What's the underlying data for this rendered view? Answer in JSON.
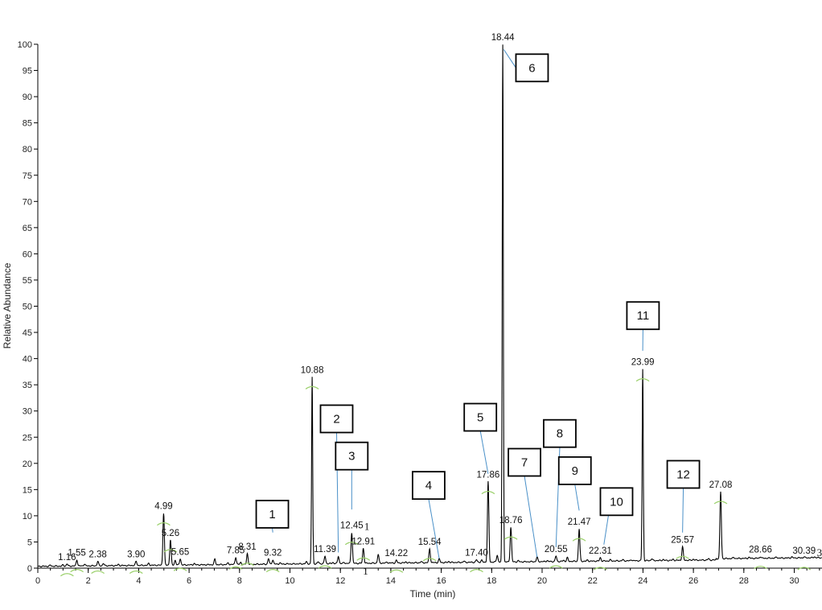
{
  "chart_data": {
    "type": "line",
    "title": "",
    "xlabel": "Time (min)",
    "ylabel": "Relative Abundance",
    "xlim": [
      0,
      31.1
    ],
    "ylim": [
      0,
      100
    ],
    "x_ticks": [
      0,
      2,
      4,
      6,
      8,
      10,
      12,
      14,
      16,
      18,
      20,
      22,
      24,
      26,
      28,
      30
    ],
    "y_ticks": [
      0,
      5,
      10,
      15,
      20,
      25,
      30,
      35,
      40,
      45,
      50,
      55,
      60,
      65,
      70,
      75,
      80,
      85,
      90,
      95,
      100
    ],
    "peaks": [
      {
        "x": 1.16,
        "y": 0.8,
        "label": "1.16"
      },
      {
        "x": 1.55,
        "y": 1.6,
        "label": "1.55"
      },
      {
        "x": 2.38,
        "y": 1.3,
        "label": "2.38"
      },
      {
        "x": 3.9,
        "y": 1.3,
        "label": "3.90"
      },
      {
        "x": 4.99,
        "y": 10.5,
        "label": "4.99"
      },
      {
        "x": 5.26,
        "y": 5.4,
        "label": "5.26"
      },
      {
        "x": 5.65,
        "y": 1.8,
        "label": "5.65"
      },
      {
        "x": 7.85,
        "y": 2.1,
        "label": "7.85"
      },
      {
        "x": 8.31,
        "y": 2.8,
        "label": "8.31"
      },
      {
        "x": 9.32,
        "y": 1.6,
        "label": "9.32"
      },
      {
        "x": 10.88,
        "y": 36.5,
        "label": "10.88"
      },
      {
        "x": 11.39,
        "y": 2.3,
        "label": "11.39"
      },
      {
        "x": 12.45,
        "y": 6.8,
        "label": "12.45"
      },
      {
        "x": 12.91,
        "y": 3.8,
        "label": "12.91"
      },
      {
        "x": 14.22,
        "y": 1.5,
        "label": "14.22"
      },
      {
        "x": 15.54,
        "y": 3.7,
        "label": "15.54"
      },
      {
        "x": 17.4,
        "y": 1.6,
        "label": "17.40"
      },
      {
        "x": 17.86,
        "y": 16.5,
        "label": "17.86"
      },
      {
        "x": 18.44,
        "y": 100,
        "label": "18.44"
      },
      {
        "x": 18.76,
        "y": 7.8,
        "label": "18.76"
      },
      {
        "x": 20.55,
        "y": 2.3,
        "label": "20.55"
      },
      {
        "x": 21.47,
        "y": 7.5,
        "label": "21.47"
      },
      {
        "x": 22.31,
        "y": 2.0,
        "label": "22.31"
      },
      {
        "x": 23.99,
        "y": 38.0,
        "label": "23.99"
      },
      {
        "x": 25.57,
        "y": 4.1,
        "label": "25.57"
      },
      {
        "x": 27.08,
        "y": 14.6,
        "label": "27.08"
      },
      {
        "x": 28.66,
        "y": 2.2,
        "label": "28.66"
      },
      {
        "x": 30.39,
        "y": 2.0,
        "label": "30.39"
      }
    ],
    "minor_peaks": [
      {
        "x": 0.5,
        "y": 0.4
      },
      {
        "x": 1.0,
        "y": 0.6
      },
      {
        "x": 1.85,
        "y": 0.8
      },
      {
        "x": 2.6,
        "y": 0.9
      },
      {
        "x": 3.2,
        "y": 0.7
      },
      {
        "x": 4.4,
        "y": 0.9
      },
      {
        "x": 5.45,
        "y": 1.5
      },
      {
        "x": 6.2,
        "y": 0.9
      },
      {
        "x": 7.02,
        "y": 1.7
      },
      {
        "x": 7.55,
        "y": 1.0
      },
      {
        "x": 8.05,
        "y": 1.1
      },
      {
        "x": 9.15,
        "y": 1.8
      },
      {
        "x": 9.6,
        "y": 1.0
      },
      {
        "x": 10.65,
        "y": 1.2
      },
      {
        "x": 11.12,
        "y": 1.2
      },
      {
        "x": 11.7,
        "y": 1.1
      },
      {
        "x": 11.92,
        "y": 2.3
      },
      {
        "x": 12.15,
        "y": 1.1
      },
      {
        "x": 13.5,
        "y": 2.6
      },
      {
        "x": 13.85,
        "y": 1.1
      },
      {
        "x": 14.6,
        "y": 1.2
      },
      {
        "x": 15.2,
        "y": 1.1
      },
      {
        "x": 15.92,
        "y": 1.8
      },
      {
        "x": 16.3,
        "y": 1.0
      },
      {
        "x": 16.9,
        "y": 1.2
      },
      {
        "x": 17.6,
        "y": 1.5
      },
      {
        "x": 18.22,
        "y": 2.5
      },
      {
        "x": 19.05,
        "y": 1.3
      },
      {
        "x": 19.8,
        "y": 2.1
      },
      {
        "x": 20.2,
        "y": 1.4
      },
      {
        "x": 20.85,
        "y": 1.5
      },
      {
        "x": 21.0,
        "y": 2.0
      },
      {
        "x": 21.8,
        "y": 1.3
      },
      {
        "x": 22.7,
        "y": 1.3
      },
      {
        "x": 23.2,
        "y": 1.5
      },
      {
        "x": 23.55,
        "y": 1.5
      },
      {
        "x": 24.35,
        "y": 1.8
      },
      {
        "x": 24.8,
        "y": 1.4
      },
      {
        "x": 25.2,
        "y": 1.4
      },
      {
        "x": 26.0,
        "y": 1.5
      },
      {
        "x": 26.6,
        "y": 1.8
      },
      {
        "x": 27.6,
        "y": 2.0
      },
      {
        "x": 28.2,
        "y": 1.8
      },
      {
        "x": 29.3,
        "y": 1.7
      },
      {
        "x": 29.9,
        "y": 1.8
      },
      {
        "x": 30.8,
        "y": 1.9
      }
    ],
    "callouts": [
      {
        "label": "1",
        "box_x": 9.3,
        "box_y": 10.3,
        "target_x": 9.32,
        "target_y": 6.8
      },
      {
        "label": "2",
        "box_x": 11.85,
        "box_y": 28.5,
        "target_x": 11.92,
        "target_y": 3.0
      },
      {
        "label": "3",
        "box_x": 12.45,
        "box_y": 21.4,
        "target_x": 12.45,
        "target_y": 11.2
      },
      {
        "label": "4",
        "box_x": 15.5,
        "box_y": 15.8,
        "target_x": 15.92,
        "target_y": 1.8
      },
      {
        "label": "5",
        "box_x": 17.55,
        "box_y": 28.8,
        "target_x": 17.86,
        "target_y": 18.0
      },
      {
        "label": "6",
        "box_x": 19.6,
        "box_y": 95.5,
        "target_x": 18.48,
        "target_y": 99.0
      },
      {
        "label": "7",
        "box_x": 19.3,
        "box_y": 20.2,
        "target_x": 19.8,
        "target_y": 2.1
      },
      {
        "label": "8",
        "box_x": 20.7,
        "box_y": 25.7,
        "target_x": 20.55,
        "target_y": 4.0
      },
      {
        "label": "9",
        "box_x": 21.3,
        "box_y": 18.6,
        "target_x": 21.47,
        "target_y": 11.0
      },
      {
        "label": "10",
        "box_x": 22.95,
        "box_y": 12.7,
        "target_x": 22.45,
        "target_y": 4.5
      },
      {
        "label": "11",
        "box_x": 24.0,
        "box_y": 48.2,
        "target_x": 23.99,
        "target_y": 41.5
      },
      {
        "label": "12",
        "box_x": 25.6,
        "box_y": 17.9,
        "target_x": 25.57,
        "target_y": 6.8
      }
    ],
    "stray_marks": [
      {
        "text": "1",
        "x": 13.05,
        "y": 7.3
      },
      {
        "text": "1",
        "x": 13.0,
        "y": -1.2
      },
      {
        "text": "3",
        "x": 31.0,
        "y": 2.3
      }
    ],
    "grid": false,
    "legend": "none"
  }
}
